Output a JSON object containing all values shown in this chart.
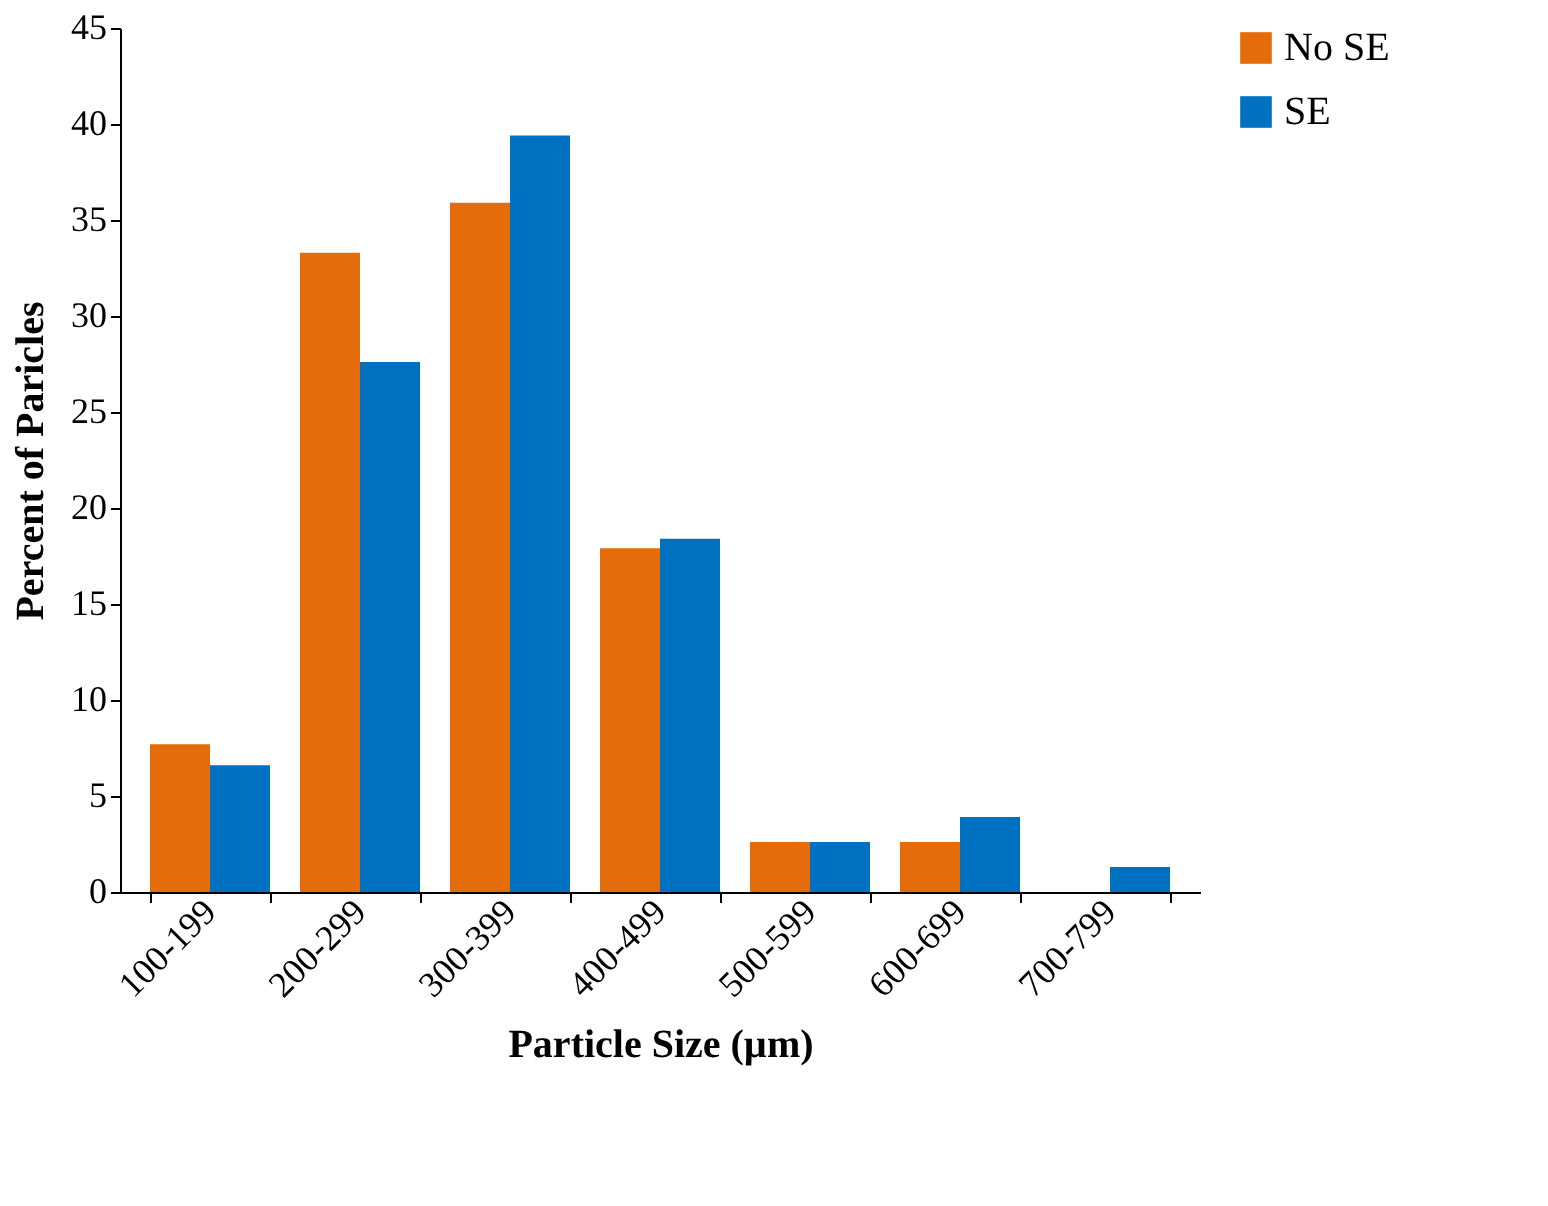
{
  "chart_data": {
    "type": "bar",
    "xlabel": "Particle Size (µm)",
    "ylabel": "Percent of Paricles",
    "categories": [
      "100-199",
      "200-299",
      "300-399",
      "400-499",
      "500-599",
      "600-699",
      "700-799"
    ],
    "series": [
      {
        "name": "No SE",
        "color": "#e46c0a",
        "values": [
          7.7,
          33.3,
          35.9,
          17.9,
          2.6,
          2.6,
          0
        ]
      },
      {
        "name": "SE",
        "color": "#0070c0",
        "values": [
          6.6,
          27.6,
          39.4,
          18.4,
          2.6,
          3.9,
          1.3
        ]
      }
    ],
    "ylim": [
      0,
      45
    ],
    "yticks": [
      0,
      5,
      10,
      15,
      20,
      25,
      30,
      35,
      40,
      45
    ],
    "grid": false,
    "legend": "right"
  }
}
